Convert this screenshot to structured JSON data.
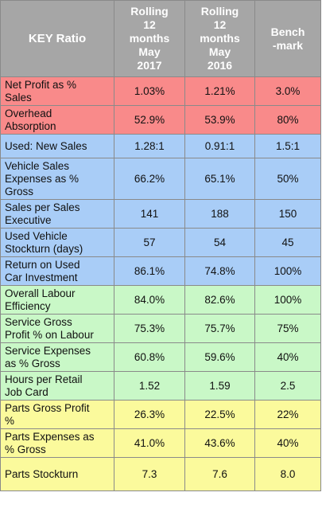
{
  "colors": {
    "header_bg": "#a6a6a6",
    "header_text": "#ffffff",
    "profit_group": "#f98a8a",
    "vehicle_group": "#a9cdf7",
    "service_group": "#c9f8c7",
    "parts_group": "#fbfa9c"
  },
  "header": {
    "ratio": "KEY Ratio",
    "col2": [
      "Rolling",
      "12",
      "months",
      "May",
      "2017"
    ],
    "col3": [
      "Rolling",
      "12",
      "months",
      "May",
      "2016"
    ],
    "col4": [
      "Bench",
      "-mark"
    ]
  },
  "rows": [
    {
      "group": "red",
      "label": [
        "Net Profit as %",
        "Sales"
      ],
      "v2017": "1.03%",
      "v2016": "1.21%",
      "benchmark": "3.0%"
    },
    {
      "group": "red",
      "label": [
        "Overhead",
        "Absorption"
      ],
      "v2017": "52.9%",
      "v2016": "53.9%",
      "benchmark": "80%"
    },
    {
      "group": "blue",
      "label": [
        "Used: New Sales"
      ],
      "v2017": "1.28:1",
      "v2016": "0.91:1",
      "benchmark": "1.5:1"
    },
    {
      "group": "blue",
      "label": [
        "Vehicle Sales",
        "Expenses as %",
        "Gross"
      ],
      "v2017": "66.2%",
      "v2016": "65.1%",
      "benchmark": "50%"
    },
    {
      "group": "blue",
      "label": [
        "Sales per Sales",
        "Executive"
      ],
      "v2017": "141",
      "v2016": "188",
      "benchmark": "150"
    },
    {
      "group": "blue",
      "label": [
        "Used Vehicle",
        "Stockturn (days)"
      ],
      "v2017": "57",
      "v2016": "54",
      "benchmark": "45"
    },
    {
      "group": "blue",
      "label": [
        "Return on Used",
        "Car Investment"
      ],
      "v2017": "86.1%",
      "v2016": "74.8%",
      "benchmark": "100%"
    },
    {
      "group": "green",
      "label": [
        "Overall Labour",
        "Efficiency"
      ],
      "v2017": "84.0%",
      "v2016": "82.6%",
      "benchmark": "100%"
    },
    {
      "group": "green",
      "label": [
        "Service Gross",
        "Profit % on Labour"
      ],
      "v2017": "75.3%",
      "v2016": "75.7%",
      "benchmark": "75%"
    },
    {
      "group": "green",
      "label": [
        "Service Expenses",
        "as % Gross"
      ],
      "v2017": "60.8%",
      "v2016": "59.6%",
      "benchmark": "40%"
    },
    {
      "group": "green",
      "label": [
        "Hours per Retail",
        "Job Card"
      ],
      "v2017": "1.52",
      "v2016": "1.59",
      "benchmark": "2.5"
    },
    {
      "group": "yellow",
      "label": [
        "Parts Gross Profit",
        "%"
      ],
      "v2017": "26.3%",
      "v2016": "22.5%",
      "benchmark": "22%"
    },
    {
      "group": "yellow",
      "label": [
        "Parts Expenses as",
        "% Gross"
      ],
      "v2017": "41.0%",
      "v2016": "43.6%",
      "benchmark": "40%"
    },
    {
      "group": "yellow",
      "label": [
        "Parts Stockturn"
      ],
      "v2017": "7.3",
      "v2016": "7.6",
      "benchmark": "8.0"
    }
  ]
}
